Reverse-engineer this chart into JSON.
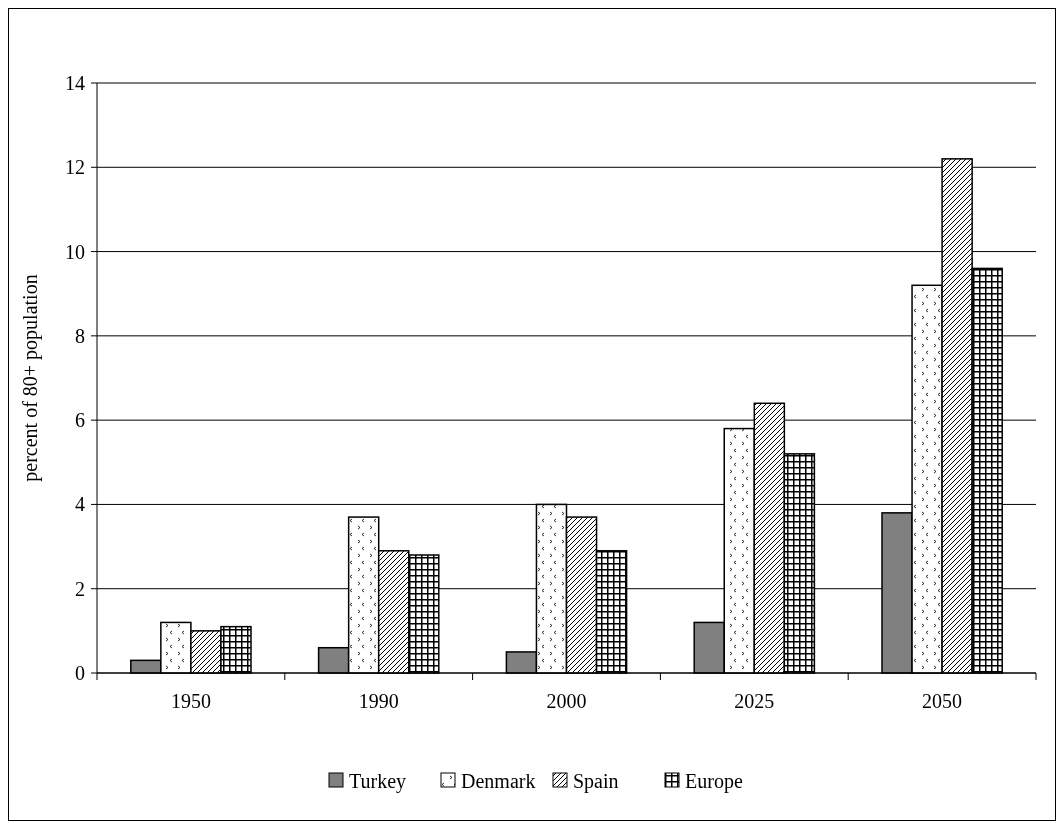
{
  "chart_data": {
    "type": "bar",
    "ylabel": "percent of 80+ population",
    "categories": [
      "1950",
      "1990",
      "2000",
      "2025",
      "2050"
    ],
    "series": [
      {
        "name": "Turkey",
        "color": "#808080",
        "values": [
          0.3,
          0.6,
          0.5,
          1.2,
          3.8
        ]
      },
      {
        "name": "Denmark",
        "color": "#000000",
        "values": [
          1.2,
          3.7,
          4.0,
          5.8,
          9.2
        ]
      },
      {
        "name": "Spain",
        "color": "#000000",
        "values": [
          1.0,
          2.9,
          3.7,
          6.4,
          12.2
        ]
      },
      {
        "name": "Europe",
        "color": "#000000",
        "values": [
          1.1,
          2.8,
          2.9,
          5.2,
          9.6
        ]
      }
    ],
    "ylim": [
      0,
      14
    ],
    "yticks": [
      0,
      2,
      4,
      6,
      8,
      10,
      12,
      14
    ],
    "grid": "y",
    "legend": "bottom"
  }
}
